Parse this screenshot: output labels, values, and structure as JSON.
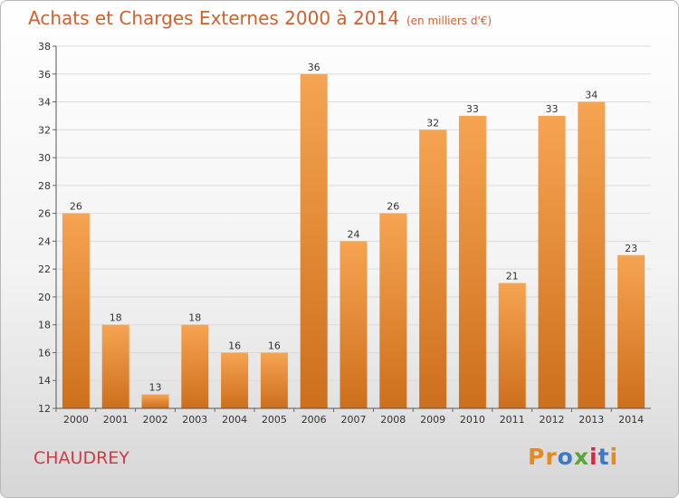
{
  "header": {
    "title": "Achats et Charges Externes 2000 à 2014",
    "unit": "(en milliers d'€)"
  },
  "location": "CHAUDREY",
  "logo": {
    "text": "Proxiti",
    "colors": [
      "#e8891e",
      "#e8891e",
      "#3d78c9",
      "#5aa637",
      "#e3233b",
      "#3d78c9",
      "#e8891e"
    ]
  },
  "colors": {
    "bar_light": "#f6a452",
    "bar_dark": "#cd6f1c",
    "title": "#d0612e",
    "town": "#cf3b49"
  },
  "chart_data": {
    "type": "bar",
    "title": "Achats et Charges Externes 2000 à 2014",
    "subtitle": "(en milliers d'€)",
    "categories": [
      "2000",
      "2001",
      "2002",
      "2003",
      "2004",
      "2005",
      "2006",
      "2007",
      "2008",
      "2009",
      "2010",
      "2011",
      "2012",
      "2013",
      "2014"
    ],
    "values": [
      26,
      18,
      13,
      18,
      16,
      16,
      36,
      24,
      26,
      32,
      33,
      21,
      33,
      34,
      23
    ],
    "ylim": [
      12,
      38
    ],
    "yticks": [
      12,
      14,
      16,
      18,
      20,
      22,
      24,
      26,
      28,
      30,
      32,
      34,
      36,
      38
    ],
    "grid": true,
    "data_labels": true
  }
}
